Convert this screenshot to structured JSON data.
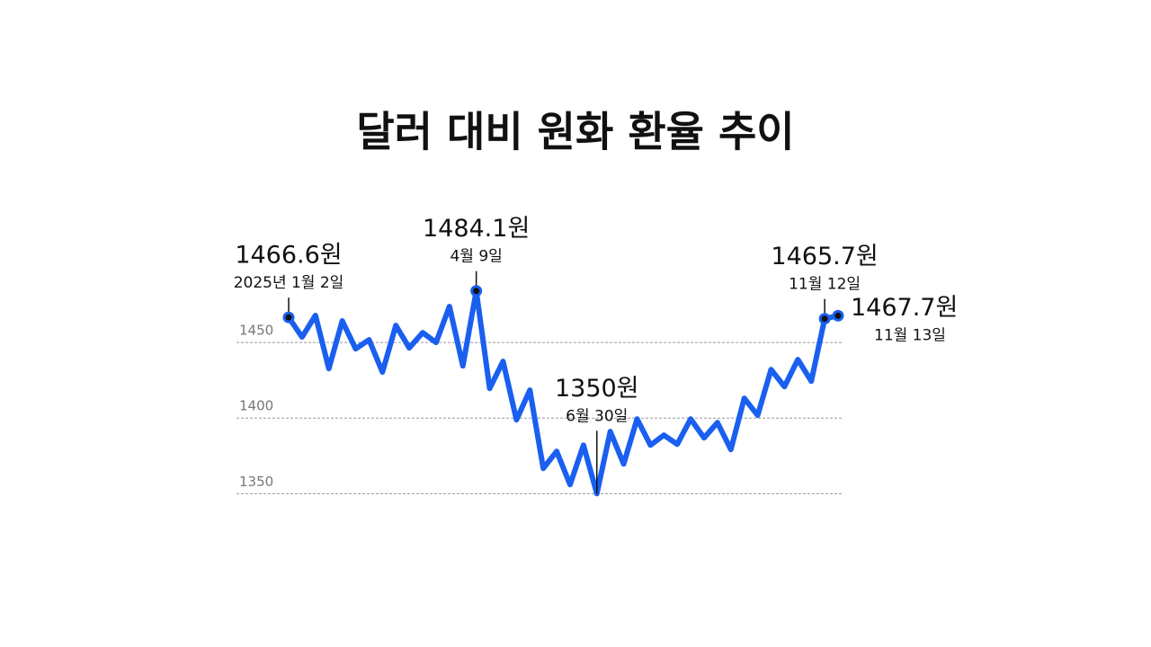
{
  "chart_data": {
    "type": "line",
    "title": "달러 대비 원화 환율 추이",
    "categories": [
      "2025년 1월 2일",
      null,
      null,
      null,
      null,
      null,
      null,
      null,
      null,
      null,
      null,
      null,
      null,
      null,
      "4월 9일",
      null,
      null,
      null,
      null,
      null,
      null,
      null,
      null,
      "6월 30일",
      null,
      null,
      null,
      null,
      null,
      null,
      null,
      null,
      null,
      null,
      null,
      null,
      null,
      null,
      null,
      null,
      "11월 12일",
      "11월 13일"
    ],
    "values": [
      1466.6,
      1453.6,
      1467.9,
      1432.7,
      1464.3,
      1445.8,
      1451.8,
      1430.4,
      1461.3,
      1446.4,
      1456.5,
      1450,
      1473.8,
      1434.5,
      1484.1,
      1419.6,
      1437.5,
      1398.8,
      1418.5,
      1366.7,
      1378,
      1356,
      1382.1,
      1350,
      1391.1,
      1369.6,
      1399.4,
      1382.1,
      1388.7,
      1382.7,
      1399.4,
      1386.9,
      1397,
      1379.2,
      1413.1,
      1401.8,
      1432.1,
      1420.8,
      1438.7,
      1424.4,
      1465.7,
      1467.7
    ],
    "value_labels": [
      "1466.6원",
      null,
      null,
      null,
      null,
      null,
      null,
      null,
      null,
      null,
      null,
      null,
      null,
      null,
      "1484.1원",
      null,
      null,
      null,
      null,
      null,
      null,
      null,
      null,
      "1350원",
      null,
      null,
      null,
      null,
      null,
      null,
      null,
      null,
      null,
      null,
      null,
      null,
      null,
      null,
      null,
      null,
      "1465.7원",
      "1467.7원"
    ],
    "color": "#1a5ff0",
    "ylim": [
      1330,
      1500
    ],
    "yticks": [
      1350,
      1400,
      1450
    ],
    "grid": true
  }
}
